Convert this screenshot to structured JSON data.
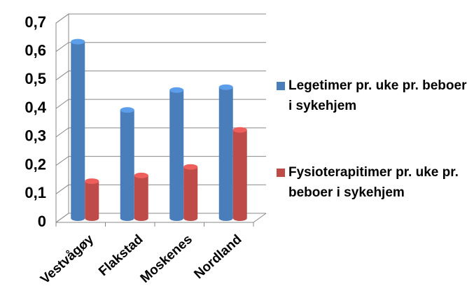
{
  "chart_data": {
    "type": "bar",
    "categories": [
      "Vestvågøy",
      "Flakstad",
      "Moskenes",
      "Nordland"
    ],
    "series": [
      {
        "name": "Legetimer pr. uke pr. beboer i sykehjem",
        "color": "#4a7ebb",
        "values": [
          0.62,
          0.38,
          0.45,
          0.46
        ]
      },
      {
        "name": "Fysioterapitimer pr. uke pr. beboer i sykehjem",
        "color": "#be4b48",
        "values": [
          0.13,
          0.15,
          0.18,
          0.31
        ]
      }
    ],
    "ylim": [
      0,
      0.7
    ],
    "yticks": [
      0,
      {
        "value": 0.1,
        "label": "0,1"
      },
      {
        "value": 0.2,
        "label": "0,2"
      },
      {
        "value": 0.3,
        "label": "0,3"
      },
      {
        "value": 0.4,
        "label": "0,4"
      },
      {
        "value": 0.5,
        "label": "0,5"
      },
      {
        "value": 0.6,
        "label": "0,6"
      },
      {
        "value": 0.7,
        "label": "0,7"
      }
    ],
    "grid": true,
    "legend": "right"
  }
}
